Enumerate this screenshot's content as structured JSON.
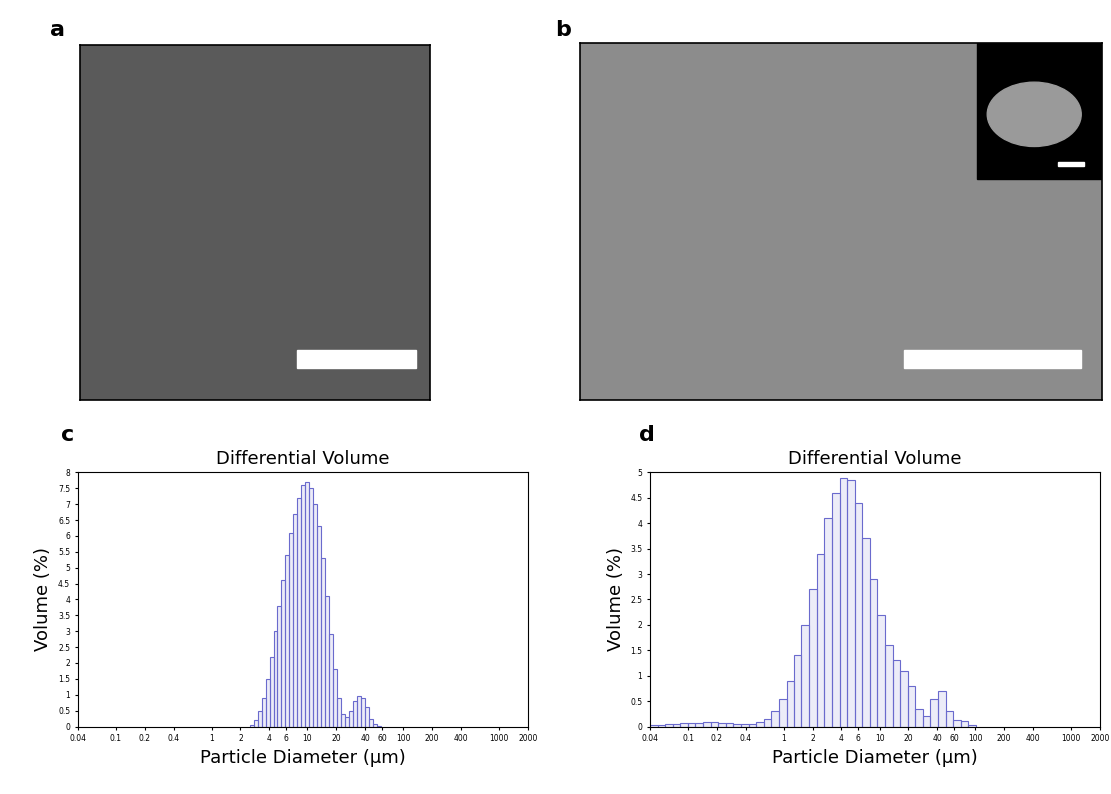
{
  "images": [
    {
      "panel_label": "a"
    },
    {
      "panel_label": "b"
    }
  ],
  "chart_data": [
    {
      "type": "histogram",
      "panel_label": "c",
      "title": "Differential Volume",
      "x_label": "Particle Diameter (µm)",
      "y_label": "Volume (%)",
      "log": "x",
      "color": "#6a6acd",
      "bins": [
        2.5,
        2.75,
        3.03,
        3.33,
        3.66,
        4.03,
        4.43,
        4.87,
        5.36,
        5.9,
        6.49,
        7.14,
        7.85,
        8.64,
        9.5,
        10.45,
        11.5,
        12.65,
        13.9,
        15.3,
        16.8,
        18.5,
        20.4,
        22.4,
        24.6,
        27.1,
        29.8,
        32.8,
        36.1,
        39.7,
        43.7,
        48.0,
        52.8,
        58.1
      ],
      "values": [
        0.05,
        0.2,
        0.5,
        0.9,
        1.5,
        2.2,
        3.0,
        3.8,
        4.6,
        5.4,
        6.1,
        6.7,
        7.2,
        7.6,
        7.7,
        7.5,
        7.0,
        6.3,
        5.3,
        4.1,
        2.9,
        1.8,
        0.9,
        0.4,
        0.3,
        0.5,
        0.8,
        0.95,
        0.9,
        0.6,
        0.25,
        0.08,
        0.02
      ],
      "xlim": [
        0.04,
        2000
      ],
      "xticks": [
        0.04,
        0.1,
        0.2,
        0.4,
        1,
        2,
        4,
        6,
        10,
        20,
        40,
        60,
        100,
        200,
        400,
        1000,
        2000
      ],
      "ylim": [
        0,
        8
      ],
      "yticks": [
        0,
        0.5,
        1,
        1.5,
        2,
        2.5,
        3,
        3.5,
        4,
        4.5,
        5,
        5.5,
        6,
        6.5,
        7,
        7.5,
        8
      ]
    },
    {
      "type": "histogram",
      "panel_label": "d",
      "title": "Differential Volume",
      "x_label": "Particle Diameter (µm)",
      "y_label": "Volume (%)",
      "log": "x",
      "color": "#6a6acd",
      "bins": [
        0.04,
        0.048,
        0.0576,
        0.0691,
        0.0829,
        0.0995,
        0.119,
        0.143,
        0.172,
        0.206,
        0.248,
        0.297,
        0.357,
        0.428,
        0.514,
        0.616,
        0.74,
        0.888,
        1.07,
        1.28,
        1.53,
        1.84,
        2.21,
        2.65,
        3.18,
        3.82,
        4.58,
        5.5,
        6.6,
        7.92,
        9.5,
        11.4,
        13.7,
        16.4,
        19.7,
        23.6,
        28.4,
        34.0,
        40.9,
        49.0,
        58.8,
        70.6,
        84.7,
        102
      ],
      "values": [
        0.02,
        0.03,
        0.04,
        0.05,
        0.06,
        0.07,
        0.07,
        0.08,
        0.08,
        0.07,
        0.06,
        0.05,
        0.04,
        0.05,
        0.08,
        0.15,
        0.3,
        0.55,
        0.9,
        1.4,
        2.0,
        2.7,
        3.4,
        4.1,
        4.6,
        4.9,
        4.85,
        4.4,
        3.7,
        2.9,
        2.2,
        1.6,
        1.3,
        1.1,
        0.8,
        0.35,
        0.2,
        0.55,
        0.7,
        0.3,
        0.12,
        0.1,
        0.03
      ],
      "xlim": [
        0.04,
        2000
      ],
      "xticks": [
        0.04,
        0.1,
        0.2,
        0.4,
        1,
        2,
        4,
        6,
        10,
        20,
        40,
        60,
        100,
        200,
        400,
        1000,
        2000
      ],
      "ylim": [
        0,
        5
      ],
      "yticks": [
        0,
        0.5,
        1,
        1.5,
        2,
        2.5,
        3,
        3.5,
        4,
        4.5,
        5
      ]
    }
  ]
}
